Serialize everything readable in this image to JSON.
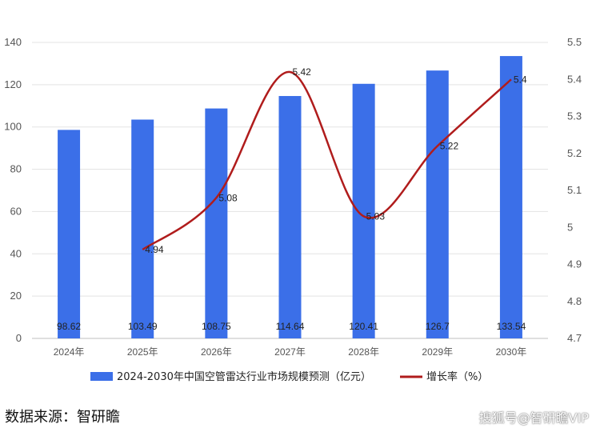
{
  "chart_data": {
    "type": "bar",
    "categories": [
      "2024年",
      "2025年",
      "2026年",
      "2027年",
      "2028年",
      "2029年",
      "2030年"
    ],
    "series": [
      {
        "name": "2024-2030年中国空管雷达行业市场规模预测（亿元）",
        "type": "bar",
        "axis": "left",
        "color": "#3b6fe8",
        "values": [
          98.62,
          103.49,
          108.75,
          114.64,
          120.41,
          126.7,
          133.54
        ],
        "labels": [
          "98.62",
          "103.49",
          "108.75",
          "114.64",
          "120.41",
          "126.7",
          "133.54"
        ]
      },
      {
        "name": "增长率（%）",
        "type": "line",
        "axis": "right",
        "smooth": true,
        "color": "#b01c1c",
        "values": [
          null,
          4.94,
          5.08,
          5.42,
          5.03,
          5.22,
          5.4
        ],
        "labels": [
          "",
          "4.94",
          "5.08",
          "5.42",
          "5.03",
          "5.22",
          "5.4"
        ]
      }
    ],
    "y_left": {
      "min": 0,
      "max": 140,
      "step": 20,
      "ticks": [
        "0",
        "20",
        "40",
        "60",
        "80",
        "100",
        "120",
        "140"
      ]
    },
    "y_right": {
      "min": 4.7,
      "max": 5.5,
      "step": 0.1,
      "ticks": [
        "4.7",
        "4.8",
        "4.9",
        "5",
        "5.1",
        "5.2",
        "5.3",
        "5.4",
        "5.5"
      ]
    },
    "grid": true,
    "legend_position": "bottom"
  },
  "source_text": "数据来源：智研瞻",
  "watermark_text": "搜狐号@智研瞻VIP"
}
